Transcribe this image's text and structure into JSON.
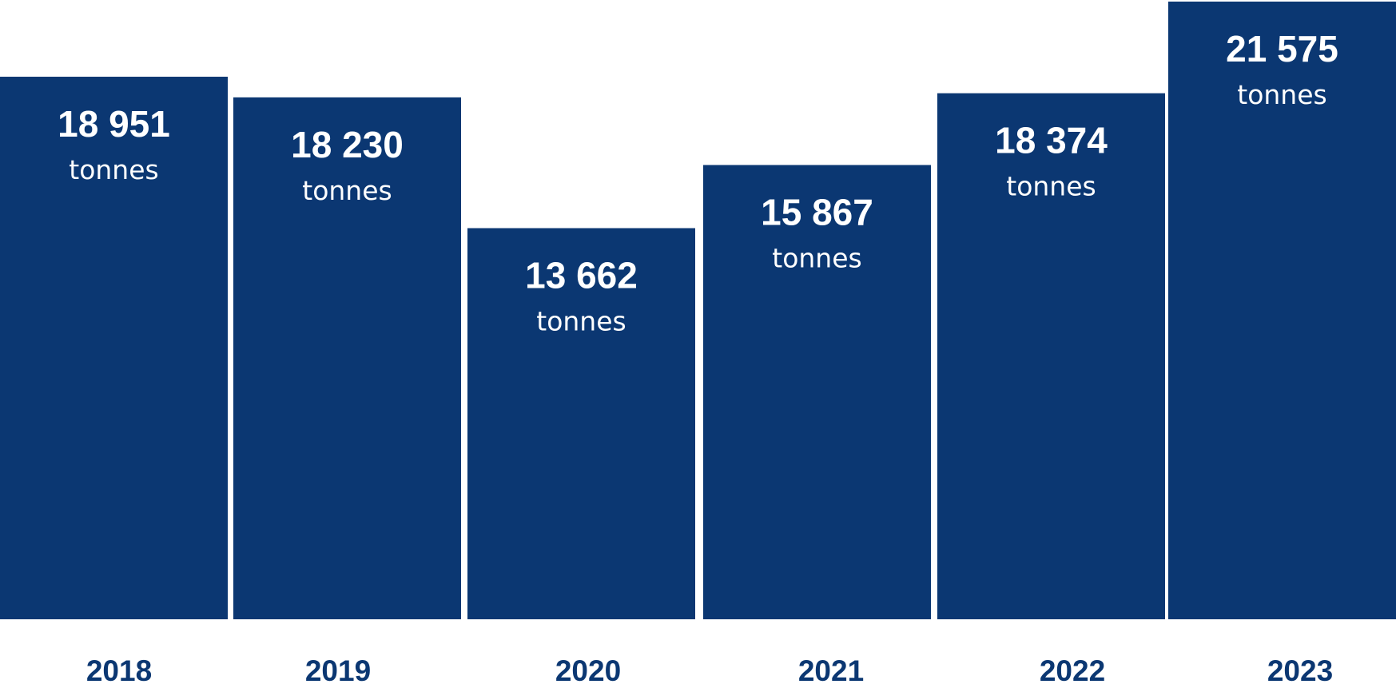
{
  "chart_data": {
    "type": "bar",
    "categories": [
      "2018",
      "2019",
      "2020",
      "2021",
      "2022",
      "2023"
    ],
    "values": [
      18951,
      18230,
      13662,
      15867,
      18374,
      21575
    ],
    "value_labels": [
      "18 951",
      "18 230",
      "13 662",
      "15 867",
      "18 374",
      "21 575"
    ],
    "unit": "tonnes",
    "title": "",
    "xlabel": "",
    "ylabel": "",
    "grid": false,
    "legend": "none",
    "colors": {
      "bar": "#0b3772",
      "value_text": "#ffffff",
      "category_text": "#0b3772"
    }
  }
}
